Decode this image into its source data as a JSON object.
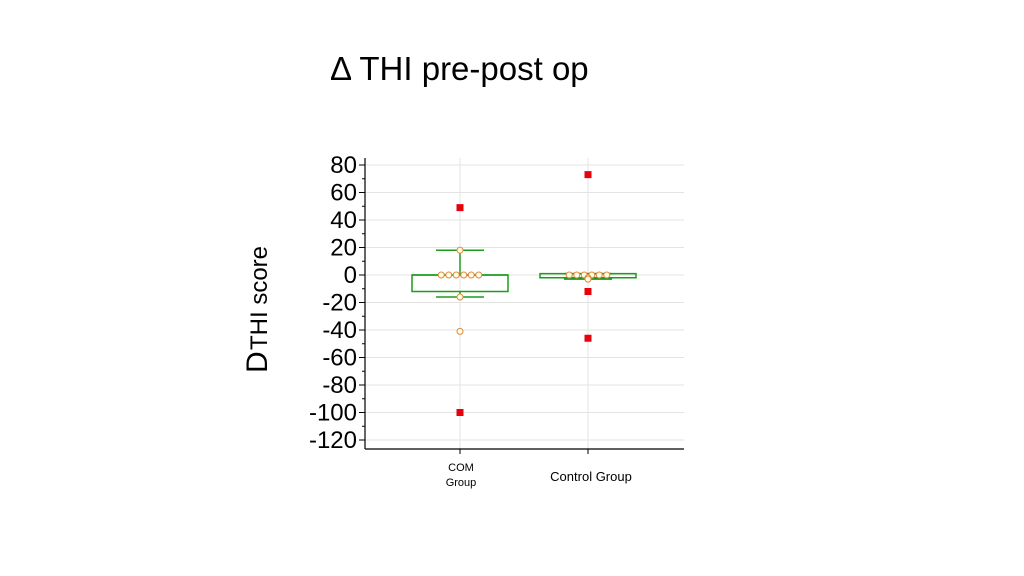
{
  "slide": {
    "title": "Δ THI pre-post op"
  },
  "chart_data": {
    "type": "box",
    "title": "Δ THI pre-post op",
    "ylabel_symbol": "D",
    "ylabel_text": "THI score",
    "xlabel": "",
    "ylim": [
      -125,
      83
    ],
    "yticks": [
      80,
      60,
      40,
      20,
      0,
      -20,
      -40,
      -60,
      -80,
      -100,
      -120
    ],
    "grid": true,
    "colors": {
      "box": "#1a9e1a",
      "point_fill": "#fffbe8",
      "point_stroke": "#e08a3c",
      "outlier": "#e8000b",
      "grid": "#e3e3e3",
      "axis": "#000000"
    },
    "groups": [
      {
        "label_lines": [
          "COM",
          "Group"
        ],
        "q1": -12,
        "median": 0,
        "q3": 0,
        "whisker_low": -16,
        "whisker_high": 18,
        "points": [
          0,
          0,
          0,
          0,
          0,
          0,
          18,
          -16,
          -41
        ],
        "outliers": [
          49,
          -100
        ]
      },
      {
        "label_lines": [
          "Control Group"
        ],
        "q1": -2,
        "median": -2,
        "q3": 1,
        "whisker_low": -3,
        "whisker_high": 1,
        "points": [
          0,
          0,
          0,
          0,
          0,
          0,
          -2,
          -3
        ],
        "outliers": [
          73,
          -12,
          -46
        ]
      }
    ]
  }
}
